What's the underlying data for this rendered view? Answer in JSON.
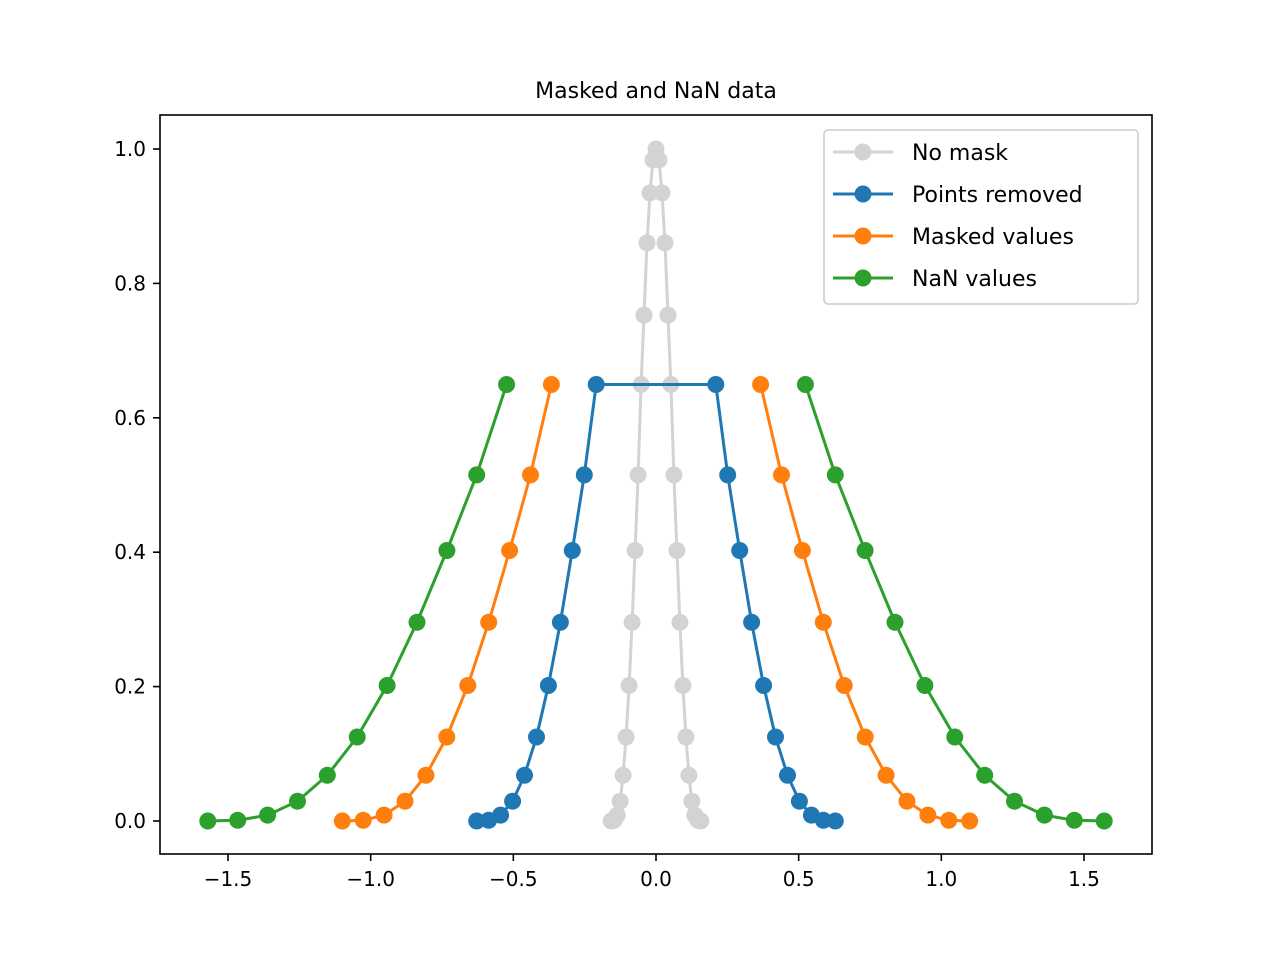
{
  "chart_data": {
    "type": "line",
    "title": "Masked and NaN data",
    "xlabel": "",
    "ylabel": "",
    "xlim": [
      -1.728,
      1.728
    ],
    "ylim": [
      -0.05,
      1.05
    ],
    "grid": false,
    "legend_position": "upper right",
    "x_ticks": [
      "−1.5",
      "−1.0",
      "−0.5",
      "0.0",
      "0.5",
      "1.0",
      "1.5"
    ],
    "x_tick_values": [
      -1.5,
      -1.0,
      -0.5,
      0.0,
      0.5,
      1.0,
      1.5
    ],
    "y_ticks": [
      "0.0",
      "0.2",
      "0.4",
      "0.6",
      "0.8",
      "1.0"
    ],
    "y_tick_values": [
      0.0,
      0.2,
      0.4,
      0.6,
      0.8,
      1.0
    ],
    "base_x": [
      -1.5708,
      -1.4661,
      -1.3614,
      -1.2566,
      -1.1519,
      -1.0472,
      -0.9425,
      -0.8378,
      -0.733,
      -0.6283,
      -0.5236,
      -0.4189,
      -0.3142,
      -0.2094,
      -0.1047,
      0.0,
      0.1047,
      0.2094,
      0.3142,
      0.4189,
      0.5236,
      0.6283,
      0.733,
      0.8378,
      0.9425,
      1.0472,
      1.1519,
      1.2566,
      1.3614,
      1.4661,
      1.5708
    ],
    "base_y": [
      0.0,
      0.0011,
      0.0088,
      0.0295,
      0.068,
      0.125,
      0.2016,
      0.2957,
      0.4025,
      0.515,
      0.6495,
      0.7528,
      0.8602,
      0.9347,
      0.9836,
      1.0,
      0.9836,
      0.9347,
      0.8602,
      0.7528,
      0.6495,
      0.515,
      0.4025,
      0.2957,
      0.2016,
      0.125,
      0.068,
      0.0295,
      0.0088,
      0.0011,
      0.0
    ],
    "series": [
      {
        "name": "No mask",
        "color": "#d3d3d3",
        "x_scale": 0.1,
        "mode": "full"
      },
      {
        "name": "Points removed",
        "color": "#1f77b4",
        "x_scale": 0.4,
        "mode": "removed",
        "threshold": 0.7
      },
      {
        "name": "Masked values",
        "color": "#ff7f0e",
        "x_scale": 0.7,
        "mode": "gap",
        "threshold": 0.7
      },
      {
        "name": "NaN values",
        "color": "#2ca02c",
        "x_scale": 1.0,
        "mode": "gap",
        "threshold": 0.7
      }
    ]
  }
}
